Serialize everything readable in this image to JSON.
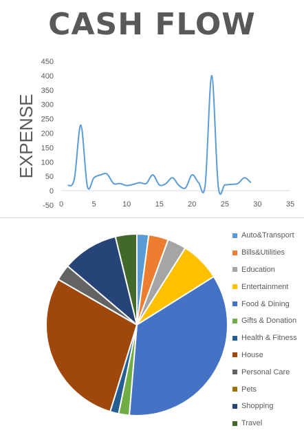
{
  "title": "CASH FLOW",
  "chart_data": [
    {
      "type": "line",
      "title": "",
      "xlabel": "",
      "ylabel": "EXPENSE",
      "xlim": [
        0,
        35
      ],
      "ylim": [
        -50,
        450
      ],
      "x_ticks": [
        0,
        5,
        10,
        15,
        20,
        25,
        30,
        35
      ],
      "y_ticks": [
        -50,
        0,
        50,
        100,
        150,
        200,
        250,
        300,
        350,
        400,
        450
      ],
      "grid": false,
      "color": "#5b9bd5",
      "series": [
        {
          "x": [
            1,
            2,
            3,
            4,
            5,
            6,
            7,
            8,
            9,
            10,
            11,
            12,
            13,
            14,
            15,
            16,
            17,
            18,
            19,
            20,
            21,
            22,
            23,
            24,
            25,
            26,
            27,
            28,
            29
          ],
          "values": [
            18,
            40,
            228,
            15,
            45,
            55,
            58,
            25,
            25,
            18,
            22,
            28,
            25,
            55,
            20,
            25,
            45,
            18,
            10,
            55,
            28,
            20,
            400,
            15,
            20,
            22,
            25,
            45,
            28
          ]
        }
      ]
    },
    {
      "type": "pie",
      "categories": [
        "Auto&Transport",
        "Bills&Utilities",
        "Education",
        "Entertainment",
        "Food & Dining",
        "Gifts & Donation",
        "Health & Fitness",
        "House",
        "Personal Care",
        "Pets",
        "Shopping",
        "Travel"
      ],
      "values": [
        2.2,
        3.7,
        3.5,
        7.5,
        37,
        2.0,
        1.6,
        30,
        3.0,
        0,
        10.5,
        4.0
      ],
      "colors": [
        "#5b9bd5",
        "#ed7d31",
        "#a5a5a5",
        "#ffc000",
        "#4472c4",
        "#70ad47",
        "#255e91",
        "#9e480e",
        "#636363",
        "#997300",
        "#264478",
        "#43682b"
      ],
      "legend": "right"
    }
  ]
}
